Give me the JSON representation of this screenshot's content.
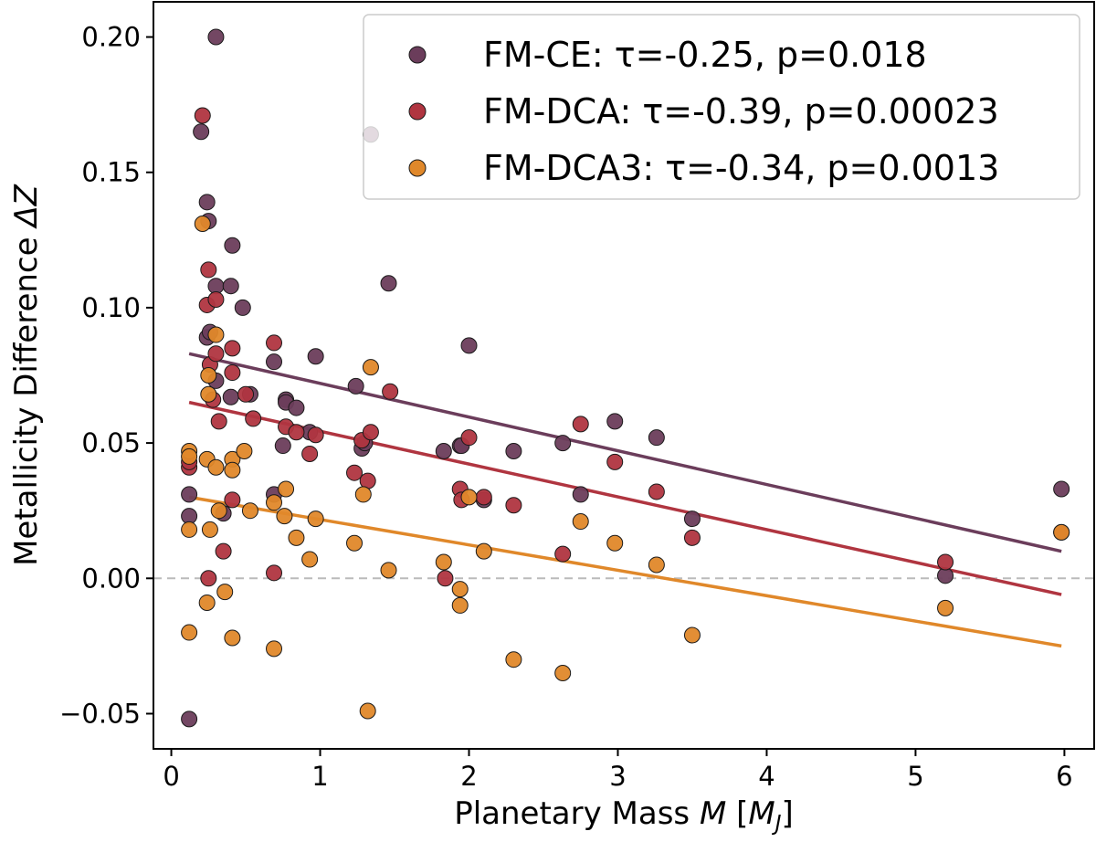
{
  "chart_data": {
    "type": "scatter",
    "title": "",
    "xlabel": {
      "prefix": "Planetary Mass ",
      "var": "M",
      "suffix": " [",
      "unit": "M",
      "sub": "J",
      "close": "]"
    },
    "ylabel": {
      "prefix": "Metallicity Difference ",
      "var": "ΔZ"
    },
    "xlim": [
      -0.12,
      6.2
    ],
    "ylim": [
      -0.063,
      0.213
    ],
    "xticks": [
      0,
      1,
      2,
      3,
      4,
      5,
      6
    ],
    "xtick_labels": [
      "0",
      "1",
      "2",
      "3",
      "4",
      "5",
      "6"
    ],
    "yticks": [
      -0.05,
      0.0,
      0.05,
      0.1,
      0.15,
      0.2
    ],
    "ytick_labels": [
      "−0.05",
      "0.00",
      "0.05",
      "0.10",
      "0.15",
      "0.20"
    ],
    "reference_line": {
      "y": 0.0,
      "style": "dashed",
      "color": "#bbbbbb"
    },
    "grid": false,
    "legend_position": "top-right",
    "series": [
      {
        "name": "FM-CE: τ=-0.25, p=0.018",
        "color": "#6b3d5b",
        "fit": {
          "x": [
            0.12,
            5.98
          ],
          "y": [
            0.083,
            0.01
          ]
        },
        "points": [
          [
            0.12,
            -0.052
          ],
          [
            0.12,
            0.031
          ],
          [
            0.12,
            0.023
          ],
          [
            0.2,
            0.165
          ],
          [
            0.24,
            0.139
          ],
          [
            0.25,
            0.132
          ],
          [
            0.24,
            0.089
          ],
          [
            0.26,
            0.091
          ],
          [
            0.3,
            0.2
          ],
          [
            0.3,
            0.108
          ],
          [
            0.3,
            0.073
          ],
          [
            0.35,
            0.024
          ],
          [
            0.41,
            0.123
          ],
          [
            0.4,
            0.108
          ],
          [
            0.4,
            0.067
          ],
          [
            0.48,
            0.1
          ],
          [
            0.53,
            0.068
          ],
          [
            0.69,
            0.08
          ],
          [
            0.69,
            0.031
          ],
          [
            0.75,
            0.049
          ],
          [
            0.77,
            0.066
          ],
          [
            0.77,
            0.065
          ],
          [
            0.84,
            0.063
          ],
          [
            0.93,
            0.054
          ],
          [
            0.97,
            0.082
          ],
          [
            1.24,
            0.071
          ],
          [
            1.28,
            0.048
          ],
          [
            1.3,
            0.05
          ],
          [
            1.34,
            0.164
          ],
          [
            1.46,
            0.109
          ],
          [
            1.83,
            0.047
          ],
          [
            1.94,
            0.049
          ],
          [
            1.95,
            0.049
          ],
          [
            2.0,
            0.086
          ],
          [
            2.1,
            0.029
          ],
          [
            2.3,
            0.047
          ],
          [
            2.63,
            0.05
          ],
          [
            2.75,
            0.031
          ],
          [
            2.98,
            0.058
          ],
          [
            3.26,
            0.052
          ],
          [
            3.5,
            0.022
          ],
          [
            5.2,
            0.001
          ],
          [
            5.98,
            0.033
          ]
        ]
      },
      {
        "name": "FM-DCA: τ=-0.39, p=0.00023",
        "color": "#b03540",
        "fit": {
          "x": [
            0.12,
            5.98
          ],
          "y": [
            0.065,
            -0.006
          ]
        },
        "points": [
          [
            0.12,
            0.041
          ],
          [
            0.12,
            0.043
          ],
          [
            0.21,
            0.171
          ],
          [
            0.24,
            0.101
          ],
          [
            0.25,
            0.114
          ],
          [
            0.26,
            0.079
          ],
          [
            0.28,
            0.066
          ],
          [
            0.3,
            0.103
          ],
          [
            0.3,
            0.083
          ],
          [
            0.32,
            0.058
          ],
          [
            0.35,
            0.01
          ],
          [
            0.25,
            0.0
          ],
          [
            0.41,
            0.085
          ],
          [
            0.41,
            0.076
          ],
          [
            0.41,
            0.029
          ],
          [
            0.5,
            0.068
          ],
          [
            0.55,
            0.059
          ],
          [
            0.69,
            0.087
          ],
          [
            0.69,
            0.002
          ],
          [
            0.77,
            0.056
          ],
          [
            0.84,
            0.054
          ],
          [
            0.93,
            0.046
          ],
          [
            0.97,
            0.053
          ],
          [
            1.23,
            0.039
          ],
          [
            1.28,
            0.051
          ],
          [
            1.32,
            0.036
          ],
          [
            1.34,
            0.054
          ],
          [
            1.47,
            0.069
          ],
          [
            1.84,
            0.0
          ],
          [
            1.94,
            0.033
          ],
          [
            1.95,
            0.029
          ],
          [
            2.0,
            0.052
          ],
          [
            2.1,
            0.03
          ],
          [
            2.3,
            0.027
          ],
          [
            2.63,
            0.009
          ],
          [
            2.75,
            0.057
          ],
          [
            2.98,
            0.043
          ],
          [
            3.26,
            0.032
          ],
          [
            3.5,
            0.015
          ],
          [
            5.2,
            0.006
          ],
          [
            5.98,
            0.017
          ]
        ]
      },
      {
        "name": "FM-DCA3: τ=-0.34, p=0.0013",
        "color": "#e0882a",
        "fit": {
          "x": [
            0.12,
            5.98
          ],
          "y": [
            0.03,
            -0.025
          ]
        },
        "points": [
          [
            0.12,
            0.047
          ],
          [
            0.12,
            0.045
          ],
          [
            0.12,
            0.018
          ],
          [
            0.12,
            -0.02
          ],
          [
            0.21,
            0.131
          ],
          [
            0.24,
            0.044
          ],
          [
            0.25,
            0.075
          ],
          [
            0.25,
            0.068
          ],
          [
            0.26,
            0.018
          ],
          [
            0.24,
            -0.009
          ],
          [
            0.3,
            0.09
          ],
          [
            0.3,
            0.041
          ],
          [
            0.32,
            0.025
          ],
          [
            0.36,
            -0.005
          ],
          [
            0.41,
            0.044
          ],
          [
            0.41,
            0.04
          ],
          [
            0.41,
            -0.022
          ],
          [
            0.49,
            0.047
          ],
          [
            0.53,
            0.025
          ],
          [
            0.69,
            0.028
          ],
          [
            0.69,
            -0.026
          ],
          [
            0.76,
            0.023
          ],
          [
            0.77,
            0.033
          ],
          [
            0.84,
            0.015
          ],
          [
            0.93,
            0.007
          ],
          [
            0.97,
            0.022
          ],
          [
            1.23,
            0.013
          ],
          [
            1.29,
            0.031
          ],
          [
            1.32,
            -0.049
          ],
          [
            1.34,
            0.078
          ],
          [
            1.46,
            0.003
          ],
          [
            1.83,
            0.006
          ],
          [
            1.94,
            -0.004
          ],
          [
            1.94,
            -0.01
          ],
          [
            2.0,
            0.03
          ],
          [
            2.1,
            0.01
          ],
          [
            2.3,
            -0.03
          ],
          [
            2.63,
            -0.035
          ],
          [
            2.75,
            0.021
          ],
          [
            2.98,
            0.013
          ],
          [
            3.26,
            0.005
          ],
          [
            3.5,
            -0.021
          ],
          [
            5.2,
            -0.011
          ],
          [
            5.98,
            0.017
          ]
        ]
      }
    ]
  }
}
